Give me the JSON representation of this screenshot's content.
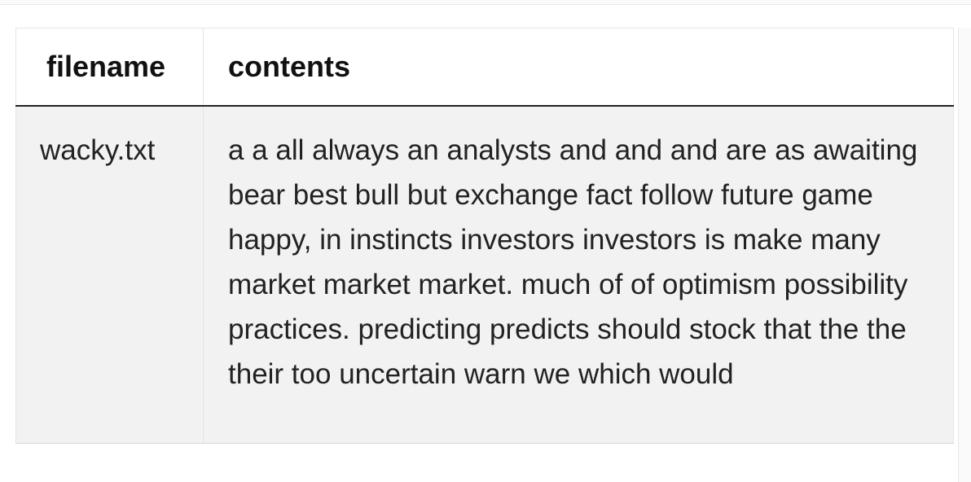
{
  "table": {
    "headers": {
      "filename": "filename",
      "contents": "contents"
    },
    "rows": [
      {
        "filename": "wacky.txt",
        "contents": "a a all always an analysts and and and are as awaiting bear best bull but exchange fact follow future game happy, in instincts investors investors is make many market market market. much of of optimism possibility practices. predicting predicts should stock that the the their too uncertain warn we which would"
      }
    ]
  }
}
